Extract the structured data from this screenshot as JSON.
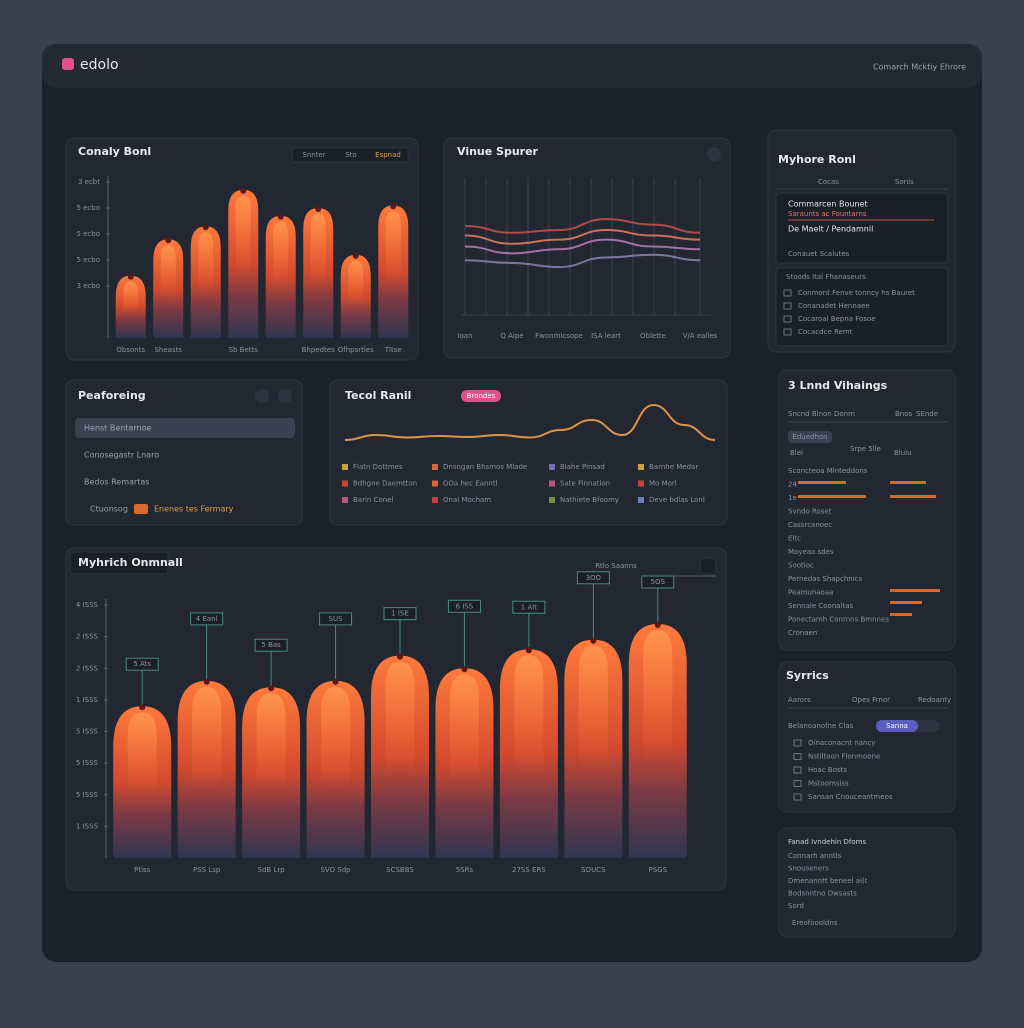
{
  "header": {
    "brand": "edolo",
    "right": "Comarch Mcktiy Ehrore"
  },
  "chart_data": [
    {
      "type": "bar",
      "title": "Conaly Bonl",
      "controls": [
        "Snnter",
        "Sto",
        "Espnad"
      ],
      "categories": [
        "Obsonts",
        "Sheasts",
        null,
        "Sb Betts",
        null,
        "Bhpedtes",
        "Ofhpsrtles",
        "Tltse"
      ],
      "values": [
        2.4,
        3.8,
        4.3,
        5.7,
        4.7,
        5.0,
        3.2,
        5.1
      ],
      "ylim": [
        0,
        6
      ],
      "yticks": [
        {
          "value": 6,
          "label": "3 ecbt"
        },
        {
          "value": 5,
          "label": "5 ecbo"
        },
        {
          "value": 4,
          "label": "5 ecbo"
        },
        {
          "value": 3,
          "label": "5 ecbo"
        },
        {
          "value": 2,
          "label": "3 ecbo"
        }
      ]
    },
    {
      "type": "line",
      "title": "Vinue Spurer",
      "categories": [
        "Ioan",
        "Q Aipe",
        "Fwonmicsope",
        "ISA leart",
        "Oblette",
        "V/A ealles"
      ],
      "ylim": [
        0,
        100
      ],
      "series": [
        {
          "color": "#c0504a",
          "values": [
            65,
            60,
            62,
            70,
            66,
            60
          ]
        },
        {
          "color": "#e07a5f",
          "values": [
            58,
            52,
            55,
            62,
            58,
            55
          ]
        },
        {
          "color": "#b07ab0",
          "values": [
            50,
            45,
            48,
            55,
            50,
            48
          ]
        },
        {
          "color": "#8a7fa8",
          "values": [
            40,
            38,
            35,
            42,
            44,
            40
          ]
        }
      ]
    },
    {
      "type": "line",
      "title": "Tecol Ranil",
      "badge": "Brondes",
      "ylim": [
        0,
        100
      ],
      "series": [
        {
          "color": "#f0a04a",
          "values": [
            20,
            30,
            25,
            28,
            26,
            30,
            25,
            40,
            60,
            30,
            90,
            50,
            20
          ]
        }
      ],
      "legend_items": [
        {
          "label": "Flatn Dottmes",
          "color": "#c9a13b"
        },
        {
          "label": "Dnsngan Bhsmos Mlade",
          "color": "#d9692e"
        },
        {
          "label": "Blahe Pinsad",
          "color": "#7a6bb5"
        },
        {
          "label": "Barnhe Medar",
          "color": "#c9a13b"
        },
        {
          "label": "Bdhgne Daemtton",
          "color": "#c0443a"
        },
        {
          "label": "GOa hec Eanntl",
          "color": "#d9692e"
        },
        {
          "label": "Sate Finnation",
          "color": "#b05a7a"
        },
        {
          "label": "Mo Morl",
          "color": "#c0443a"
        },
        {
          "label": "Barin Conel",
          "color": "#b05a7a"
        },
        {
          "label": "Onal Mocham",
          "color": "#c0443a"
        },
        {
          "label": "Nathiete Bfoomy",
          "color": "#7a8a4a"
        },
        {
          "label": "Deve bdlas Lonl",
          "color": "#6b7fc0"
        }
      ]
    },
    {
      "type": "bar",
      "title": "Myhrich Onmnall",
      "controls": [
        "Rtlo Saanns"
      ],
      "categories": [
        "Ptiss",
        "PSS Lsp",
        "SdB Lrp",
        "SVO Sdp",
        "SCSBBS",
        "5SRs",
        "27SS ERS",
        "SOUCS",
        "PSGS"
      ],
      "values": [
        4.8,
        5.6,
        5.4,
        5.6,
        6.4,
        6.0,
        6.6,
        6.9,
        7.4
      ],
      "annotations": [
        "5 Ats",
        "4 Eanl",
        "5 Bas",
        "SUS",
        "1 ISE",
        "6 ISS",
        "1 Alt",
        "3OO",
        "5OS"
      ],
      "ylim": [
        0,
        8
      ],
      "yticks": [
        {
          "value": 8,
          "label": "4 ISSS"
        },
        {
          "value": 7,
          "label": "2 ISSS"
        },
        {
          "value": 6,
          "label": "2 ISSS"
        },
        {
          "value": 5,
          "label": "1 ISSS"
        },
        {
          "value": 4,
          "label": "5 ISSS"
        },
        {
          "value": 3,
          "label": "5 ISSS"
        },
        {
          "value": 2,
          "label": "5 ISSS"
        },
        {
          "value": 1,
          "label": "1 ISSS"
        }
      ]
    }
  ],
  "panels": {
    "p3": {
      "title": "Myhore Ronl",
      "tabs": [
        "Cocas",
        "Sonis"
      ],
      "lines": [
        "Commarcen Bounet",
        "Saraunts ac Fountarns",
        "De Maelt / Pendamnil",
        "Conauet Scalutes"
      ],
      "sub": "Stoods Ital Fhanaseurs",
      "rows": [
        "Conmont Fenve tonncy hs Bauret",
        "Conanadet Hennaee",
        "Cocaroal Bepna Fosoe",
        "Cocacdce Remt"
      ]
    },
    "p4": {
      "title": "Peaforeing",
      "rows": [
        "Henst Bentarnoe",
        "Conosegastr Lnaro",
        "Bedos Remartas",
        "Ctuonsog"
      ],
      "tag": "Enenes tes Fermary"
    },
    "p7": {
      "title": "3 Lnnd Vihaings",
      "head": [
        "Sncnd Blnon Donm",
        "Bnos",
        "SEnde"
      ],
      "chip": "Eduedhon",
      "cols": [
        "Blel",
        "Srpe 5lle",
        "Blulu"
      ],
      "rows": [
        "Sconcteoa Mlnteddons",
        "24",
        "1e",
        "Svndo Roset",
        "Cassrcanoec",
        "Eltc",
        "Moyeaa sdes",
        "Sootioc",
        "Pernedas Shapchnics",
        "Peamunaoaa",
        "Sennale Coonaltas",
        "Ponectamh Conrnns Bmnnes",
        "Cronaen"
      ]
    },
    "p8": {
      "title": "Syrrics",
      "tabs": [
        "Aarors",
        "Opes Frnor",
        "Redoanty"
      ],
      "label": "Belanoanofne Clas",
      "toggle": "Sanna",
      "rows": [
        "Oinaconacnt nancy",
        "Nstiltoon Flonmoone",
        "Hoac Bosts",
        "Mstoomsiss",
        "Sansan Cnouceantmeos"
      ]
    },
    "p9": {
      "title": "Fanad Ivndehin Dfoms",
      "rows": [
        "Connarh anntls",
        "Snouseners",
        "Dmenanntt beneel ai(t",
        "Bodsnntno Dwsasts",
        "Sord"
      ],
      "foot": "Ereofoooldns"
    }
  }
}
